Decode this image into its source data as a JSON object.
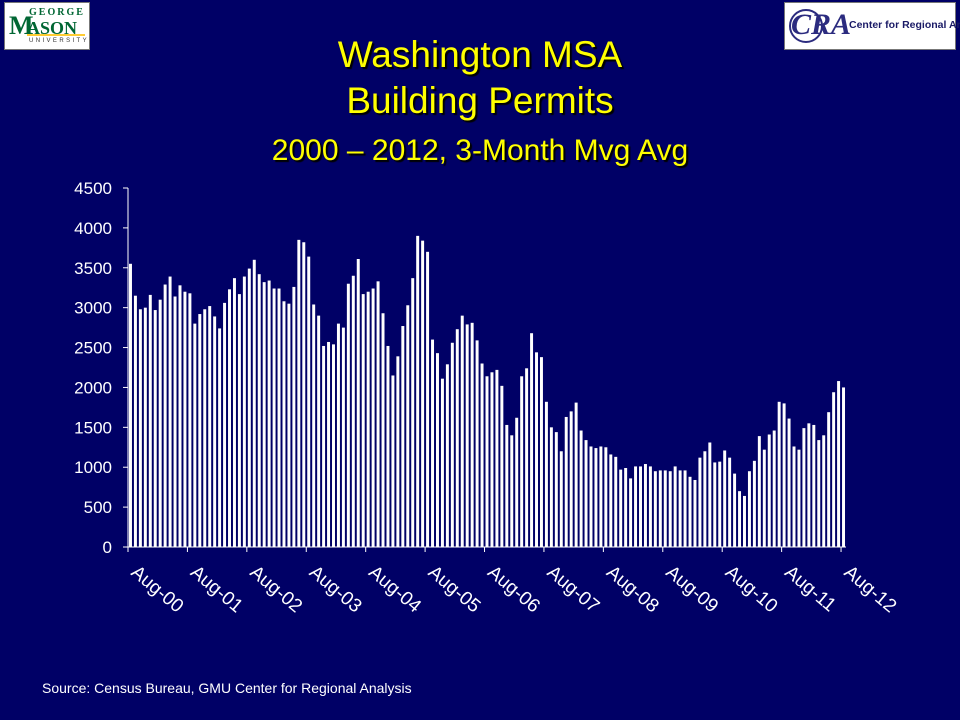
{
  "logos": {
    "left": {
      "george": "GEORGE",
      "mason_initial": "M",
      "mason_rest": "ASON",
      "university": "UNIVERSITY"
    },
    "right": {
      "initials": "CRA",
      "name": "Center for Regional Analysis"
    }
  },
  "colors": {
    "background": "#000066",
    "title": "#ffff00",
    "bars": "#ffffff",
    "text": "#ffffff"
  },
  "chart_data": {
    "type": "bar",
    "title": "Washington MSA",
    "subtitle": "Building Permits",
    "subtitle2": "2000 – 2012, 3-Month Mvg Avg",
    "xlabel": "",
    "ylabel": "",
    "ylim": [
      0,
      4500
    ],
    "yticks": [
      0,
      500,
      1000,
      1500,
      2000,
      2500,
      3000,
      3500,
      4000,
      4500
    ],
    "xticks": [
      "Aug-00",
      "Aug-01",
      "Aug-02",
      "Aug-03",
      "Aug-04",
      "Aug-05",
      "Aug-06",
      "Aug-07",
      "Aug-08",
      "Aug-09",
      "Aug-10",
      "Aug-11",
      "Aug-12"
    ],
    "months_per_tick": 12,
    "grid": false,
    "legend": "none",
    "values": [
      3550,
      3150,
      2980,
      3000,
      3160,
      2970,
      3100,
      3290,
      3390,
      3140,
      3280,
      3200,
      3180,
      2800,
      2920,
      2980,
      3020,
      2890,
      2740,
      3060,
      3230,
      3370,
      3170,
      3390,
      3490,
      3600,
      3420,
      3320,
      3340,
      3240,
      3240,
      3080,
      3050,
      3260,
      3850,
      3820,
      3640,
      3040,
      2900,
      2520,
      2570,
      2540,
      2800,
      2750,
      3300,
      3400,
      3610,
      3170,
      3200,
      3240,
      3330,
      2930,
      2520,
      2150,
      2390,
      2770,
      3030,
      3370,
      3900,
      3840,
      3700,
      2600,
      2430,
      2110,
      2290,
      2560,
      2730,
      2900,
      2790,
      2810,
      2590,
      2300,
      2140,
      2190,
      2220,
      2020,
      1530,
      1400,
      1620,
      2140,
      2240,
      2680,
      2440,
      2380,
      1820,
      1500,
      1440,
      1200,
      1630,
      1700,
      1810,
      1460,
      1340,
      1260,
      1240,
      1260,
      1250,
      1160,
      1130,
      970,
      990,
      860,
      1010,
      1010,
      1040,
      1010,
      950,
      960,
      960,
      950,
      1010,
      960,
      960,
      880,
      840,
      1120,
      1200,
      1310,
      1060,
      1070,
      1210,
      1120,
      920,
      700,
      640,
      950,
      1080,
      1390,
      1220,
      1410,
      1460,
      1820,
      1800,
      1610,
      1260,
      1220,
      1490,
      1550,
      1530,
      1340,
      1400,
      1690,
      1940,
      2080,
      2000
    ]
  },
  "source": "Source: Census Bureau, GMU Center for Regional Analysis"
}
